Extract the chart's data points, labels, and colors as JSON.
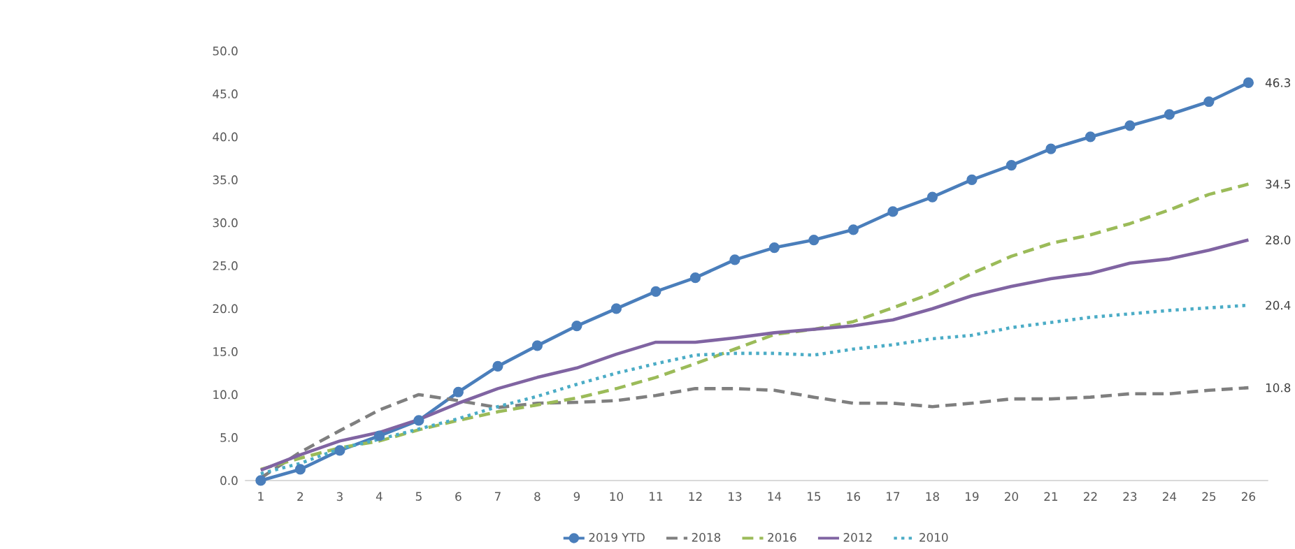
{
  "chart_data": {
    "type": "line",
    "categories": [
      "1",
      "2",
      "3",
      "4",
      "5",
      "6",
      "7",
      "8",
      "9",
      "10",
      "11",
      "12",
      "13",
      "14",
      "15",
      "16",
      "17",
      "18",
      "19",
      "20",
      "21",
      "22",
      "23",
      "24",
      "25",
      "26"
    ],
    "series": [
      {
        "name": "2019 YTD",
        "color": "#4a7ebb",
        "marker": "circle",
        "line_style": "solid",
        "values": [
          0,
          1.3,
          3.5,
          5.2,
          7.0,
          10.3,
          13.3,
          15.7,
          18.0,
          20.0,
          22.0,
          23.6,
          25.7,
          27.1,
          28.0,
          29.2,
          31.3,
          33.0,
          35.0,
          36.7,
          38.6,
          40.0,
          41.3,
          42.6,
          44.1,
          46.3
        ]
      },
      {
        "name": "2018",
        "color": "#7f7f7f",
        "marker": "none",
        "line_style": "dashed",
        "values": [
          0.3,
          3.3,
          5.8,
          8.2,
          10.0,
          9.3,
          8.5,
          9.0,
          9.1,
          9.3,
          9.9,
          10.7,
          10.7,
          10.5,
          9.7,
          9.0,
          9.0,
          8.6,
          9.0,
          9.5,
          9.5,
          9.7,
          10.1,
          10.1,
          10.5,
          10.8
        ]
      },
      {
        "name": "2016",
        "color": "#9bbb59",
        "marker": "none",
        "line_style": "dashed",
        "values": [
          1.3,
          2.6,
          3.8,
          4.6,
          5.9,
          7.0,
          8.0,
          8.8,
          9.6,
          10.7,
          12.0,
          13.6,
          15.3,
          17.0,
          17.6,
          18.5,
          20.1,
          21.8,
          24.1,
          26.1,
          27.6,
          28.6,
          29.9,
          31.5,
          33.3,
          34.5
        ]
      },
      {
        "name": "2012",
        "color": "#8064a2",
        "marker": "none",
        "line_style": "solid",
        "values": [
          1.2,
          3.0,
          4.6,
          5.6,
          7.1,
          9.0,
          10.7,
          12.0,
          13.1,
          14.7,
          16.1,
          16.1,
          16.6,
          17.2,
          17.6,
          18.0,
          18.7,
          20.0,
          21.5,
          22.6,
          23.5,
          24.1,
          25.3,
          25.8,
          26.8,
          28.0
        ]
      },
      {
        "name": "2010",
        "color": "#4bacc6",
        "marker": "none",
        "line_style": "dotted",
        "values": [
          0.8,
          2.0,
          3.7,
          4.8,
          6.0,
          7.2,
          8.6,
          9.8,
          11.2,
          12.5,
          13.6,
          14.6,
          14.8,
          14.8,
          14.6,
          15.3,
          15.8,
          16.5,
          16.9,
          17.8,
          18.4,
          19.0,
          19.4,
          19.8,
          20.1,
          20.4
        ]
      }
    ],
    "ylim": [
      0,
      50
    ],
    "yticks": [
      {
        "value": 0,
        "label": "0.0"
      },
      {
        "value": 5,
        "label": "5.0"
      },
      {
        "value": 10,
        "label": "10.0"
      },
      {
        "value": 15,
        "label": "15.0"
      },
      {
        "value": 20,
        "label": "20.0"
      },
      {
        "value": 25,
        "label": "25.0"
      },
      {
        "value": 30,
        "label": "30.0"
      },
      {
        "value": 35,
        "label": "35.0"
      },
      {
        "value": 40,
        "label": "40.0"
      },
      {
        "value": 45,
        "label": "45.0"
      },
      {
        "value": 50,
        "label": "50.0"
      }
    ],
    "annotations": [
      {
        "text": "46.3",
        "x": "26",
        "y": 46.3
      },
      {
        "text": "34.5",
        "x": "26",
        "y": 34.5
      },
      {
        "text": "28.0",
        "x": "26",
        "y": 28.0
      },
      {
        "text": "20.4",
        "x": "26",
        "y": 20.4
      },
      {
        "text": "10.8",
        "x": "26",
        "y": 10.8
      }
    ],
    "legend": "bottom"
  }
}
